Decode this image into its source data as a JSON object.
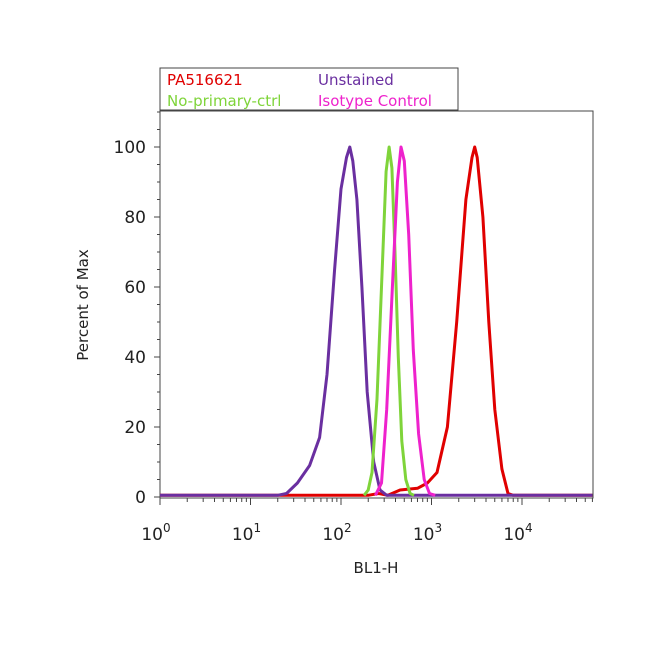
{
  "chart_data": {
    "type": "line",
    "xlabel": "BL1-H",
    "ylabel": "Percent of Max",
    "xscale": "log",
    "xlim": [
      1,
      60000
    ],
    "ylim": [
      0,
      110
    ],
    "x_ticks": [
      {
        "value": 1,
        "base": "10",
        "exp": "0"
      },
      {
        "value": 10,
        "base": "10",
        "exp": "1"
      },
      {
        "value": 100,
        "base": "10",
        "exp": "2"
      },
      {
        "value": 1000,
        "base": "10",
        "exp": "3"
      },
      {
        "value": 10000,
        "base": "10",
        "exp": "4"
      }
    ],
    "y_ticks": [
      "0",
      "20",
      "40",
      "60",
      "80",
      "100"
    ],
    "grid": false,
    "legend_position": "top-left outside",
    "series": [
      {
        "name": "PA516621",
        "color": "#e00000",
        "points": [
          [
            1,
            0.5
          ],
          [
            200,
            0.5
          ],
          [
            260,
            1
          ],
          [
            330,
            0.5
          ],
          [
            450,
            2
          ],
          [
            700,
            2.5
          ],
          [
            900,
            4
          ],
          [
            1150,
            7
          ],
          [
            1500,
            20
          ],
          [
            1900,
            50
          ],
          [
            2400,
            85
          ],
          [
            2800,
            97
          ],
          [
            3000,
            100
          ],
          [
            3200,
            97
          ],
          [
            3700,
            80
          ],
          [
            4300,
            50
          ],
          [
            5000,
            25
          ],
          [
            6000,
            8
          ],
          [
            7000,
            1
          ],
          [
            8000,
            0.5
          ],
          [
            60000,
            0.5
          ]
        ]
      },
      {
        "name": "Unstained",
        "color": "#6a2fa0",
        "points": [
          [
            1,
            0.5
          ],
          [
            20,
            0.5
          ],
          [
            25,
            1
          ],
          [
            33,
            4
          ],
          [
            45,
            9
          ],
          [
            58,
            17
          ],
          [
            70,
            35
          ],
          [
            85,
            65
          ],
          [
            100,
            88
          ],
          [
            115,
            97
          ],
          [
            125,
            100
          ],
          [
            135,
            96
          ],
          [
            150,
            85
          ],
          [
            170,
            60
          ],
          [
            195,
            30
          ],
          [
            230,
            10
          ],
          [
            270,
            2
          ],
          [
            320,
            0.5
          ],
          [
            60000,
            0.5
          ]
        ]
      },
      {
        "name": "No-primary-ctrl",
        "color": "#7fd43a",
        "points": [
          [
            180,
            0.5
          ],
          [
            200,
            2
          ],
          [
            220,
            7
          ],
          [
            250,
            28
          ],
          [
            285,
            65
          ],
          [
            315,
            93
          ],
          [
            340,
            100
          ],
          [
            365,
            94
          ],
          [
            395,
            70
          ],
          [
            430,
            40
          ],
          [
            470,
            16
          ],
          [
            520,
            5
          ],
          [
            580,
            1
          ],
          [
            640,
            0.5
          ]
        ]
      },
      {
        "name": "Isotype Control",
        "color": "#ee22cc",
        "points": [
          [
            240,
            0.5
          ],
          [
            280,
            4
          ],
          [
            320,
            25
          ],
          [
            370,
            60
          ],
          [
            420,
            90
          ],
          [
            460,
            100
          ],
          [
            500,
            96
          ],
          [
            560,
            75
          ],
          [
            630,
            42
          ],
          [
            720,
            18
          ],
          [
            830,
            5
          ],
          [
            950,
            1
          ],
          [
            1100,
            0.5
          ]
        ]
      }
    ]
  }
}
